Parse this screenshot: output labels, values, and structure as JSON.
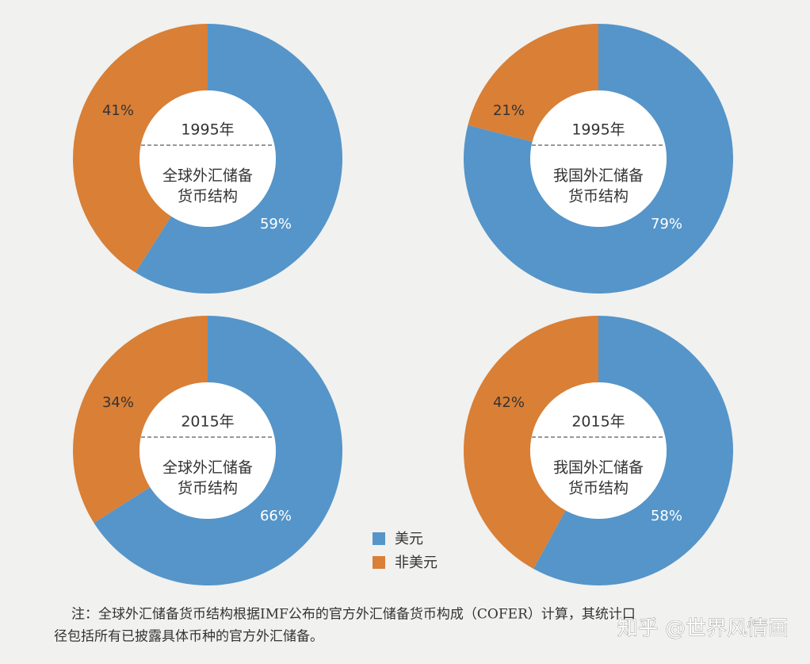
{
  "chart_data": [
    {
      "type": "pie",
      "title": "1995年",
      "center_label": [
        "全球外汇储备",
        "货币结构"
      ],
      "categories": [
        "美元",
        "非美元"
      ],
      "values": [
        59,
        41
      ],
      "value_labels": [
        "59%",
        "41%"
      ],
      "colors": [
        "#5595c9",
        "#d97f36"
      ]
    },
    {
      "type": "pie",
      "title": "1995年",
      "center_label": [
        "我国外汇储备",
        "货币结构"
      ],
      "categories": [
        "美元",
        "非美元"
      ],
      "values": [
        79,
        21
      ],
      "value_labels": [
        "79%",
        "21%"
      ],
      "colors": [
        "#5595c9",
        "#d97f36"
      ]
    },
    {
      "type": "pie",
      "title": "2015年",
      "center_label": [
        "全球外汇储备",
        "货币结构"
      ],
      "categories": [
        "美元",
        "非美元"
      ],
      "values": [
        66,
        34
      ],
      "value_labels": [
        "66%",
        "34%"
      ],
      "colors": [
        "#5595c9",
        "#d97f36"
      ]
    },
    {
      "type": "pie",
      "title": "2015年",
      "center_label": [
        "我国外汇储备",
        "货币结构"
      ],
      "categories": [
        "美元",
        "非美元"
      ],
      "values": [
        58,
        42
      ],
      "value_labels": [
        "58%",
        "42%"
      ],
      "colors": [
        "#5595c9",
        "#d97f36"
      ]
    }
  ],
  "note": [
    "注：全球外汇储备货币结构根据IMF公布的官方外汇储备货币构成（COFER）计算，其统计口",
    "径包括所有已披露具体币种的官方外汇储备。"
  ],
  "watermark": "知乎 @世界风情画"
}
